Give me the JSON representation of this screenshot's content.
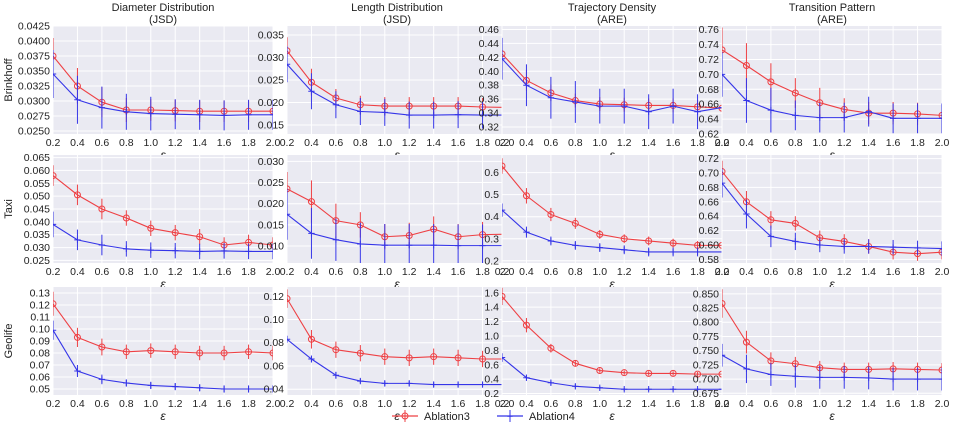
{
  "figure": {
    "col_titles": [
      [
        "Diameter Distribution",
        "(JSD)"
      ],
      [
        "Length Distribution",
        "(JSD)"
      ],
      [
        "Trajectory Density",
        "(ARE)"
      ],
      [
        "Transition Pattern",
        "(ARE)"
      ]
    ],
    "row_labels": [
      "Brinkhoff",
      "Taxi",
      "Geolife"
    ],
    "legend": [
      {
        "name": "Ablation3",
        "color": "#ee4044"
      },
      {
        "name": "Ablation4",
        "color": "#3535e8"
      }
    ]
  },
  "chart_data": [
    {
      "type": "line",
      "row": 0,
      "col": 0,
      "xlabel": "ε",
      "ylabel": "",
      "x": [
        0.2,
        0.4,
        0.6,
        0.8,
        1.0,
        1.2,
        1.4,
        1.6,
        1.8,
        2.0
      ],
      "ylim": [
        0.0245,
        0.0425
      ],
      "yticks": [
        0.025,
        0.0275,
        0.03,
        0.0325,
        0.035,
        0.0375,
        0.04,
        0.0425
      ],
      "ytick_labels": [
        "0.0250",
        "0.0275",
        "0.0300",
        "0.0325",
        "0.0350",
        "0.0375",
        "0.0400",
        "0.0425"
      ],
      "series": [
        {
          "name": "Ablation3",
          "values": [
            0.0375,
            0.0325,
            0.0298,
            0.0285,
            0.0285,
            0.0284,
            0.0283,
            0.0283,
            0.0283,
            0.0283
          ],
          "errors": [
            0.003,
            0.003,
            0.0025,
            0.002,
            0.0018,
            0.0018,
            0.0018,
            0.0018,
            0.0018,
            0.0018
          ]
        },
        {
          "name": "Ablation4",
          "values": [
            0.0345,
            0.0302,
            0.0289,
            0.0282,
            0.0279,
            0.0278,
            0.0277,
            0.0276,
            0.0277,
            0.0277
          ],
          "errors": [
            0.004,
            0.004,
            0.0035,
            0.003,
            0.0028,
            0.0025,
            0.0025,
            0.0025,
            0.0025,
            0.0025
          ]
        }
      ]
    },
    {
      "type": "line",
      "row": 0,
      "col": 1,
      "xlabel": "ε",
      "ylabel": "",
      "x": [
        0.2,
        0.4,
        0.6,
        0.8,
        1.0,
        1.2,
        1.4,
        1.6,
        1.8,
        2.0
      ],
      "ylim": [
        0.013,
        0.037
      ],
      "yticks": [
        0.015,
        0.02,
        0.025,
        0.03,
        0.035
      ],
      "ytick_labels": [
        "0.015",
        "0.020",
        "0.025",
        "0.030",
        "0.035"
      ],
      "series": [
        {
          "name": "Ablation3",
          "values": [
            0.0315,
            0.0245,
            0.021,
            0.0195,
            0.0192,
            0.0192,
            0.0192,
            0.0192,
            0.019,
            0.0189
          ],
          "errors": [
            0.003,
            0.003,
            0.002,
            0.002,
            0.002,
            0.002,
            0.002,
            0.002,
            0.002,
            0.002
          ]
        },
        {
          "name": "Ablation4",
          "values": [
            0.0285,
            0.0225,
            0.0195,
            0.018,
            0.0178,
            0.0172,
            0.0172,
            0.0173,
            0.0172,
            0.0172
          ],
          "errors": [
            0.004,
            0.004,
            0.003,
            0.003,
            0.003,
            0.003,
            0.003,
            0.003,
            0.003,
            0.003
          ]
        }
      ]
    },
    {
      "type": "line",
      "row": 0,
      "col": 2,
      "xlabel": "ε",
      "ylabel": "",
      "x": [
        0.2,
        0.4,
        0.6,
        0.8,
        1.0,
        1.2,
        1.4,
        1.6,
        1.8,
        2.0
      ],
      "ylim": [
        0.31,
        0.465
      ],
      "yticks": [
        0.32,
        0.34,
        0.36,
        0.38,
        0.4,
        0.42,
        0.44,
        0.46
      ],
      "ytick_labels": [
        "0.32",
        "0.34",
        "0.36",
        "0.38",
        "0.40",
        "0.42",
        "0.44",
        "0.46"
      ],
      "series": [
        {
          "name": "Ablation3",
          "values": [
            0.425,
            0.387,
            0.369,
            0.358,
            0.353,
            0.352,
            0.351,
            0.351,
            0.349,
            0.347
          ],
          "errors": [
            0.02,
            0.015,
            0.012,
            0.01,
            0.01,
            0.01,
            0.01,
            0.01,
            0.01,
            0.01
          ]
        },
        {
          "name": "Ablation4",
          "values": [
            0.418,
            0.38,
            0.362,
            0.356,
            0.35,
            0.35,
            0.342,
            0.35,
            0.342,
            0.348
          ],
          "errors": [
            0.03,
            0.03,
            0.03,
            0.03,
            0.025,
            0.025,
            0.025,
            0.025,
            0.025,
            0.025
          ]
        }
      ]
    },
    {
      "type": "line",
      "row": 0,
      "col": 3,
      "xlabel": "ε",
      "ylabel": "",
      "x": [
        0.2,
        0.4,
        0.6,
        0.8,
        1.0,
        1.2,
        1.4,
        1.6,
        1.8,
        2.0
      ],
      "ylim": [
        0.62,
        0.765
      ],
      "yticks": [
        0.62,
        0.64,
        0.66,
        0.68,
        0.7,
        0.72,
        0.74,
        0.76
      ],
      "ytick_labels": [
        "0.62",
        "0.64",
        "0.66",
        "0.68",
        "0.70",
        "0.72",
        "0.74",
        "0.76"
      ],
      "series": [
        {
          "name": "Ablation3",
          "values": [
            0.733,
            0.712,
            0.69,
            0.675,
            0.662,
            0.653,
            0.648,
            0.648,
            0.647,
            0.645
          ],
          "errors": [
            0.03,
            0.03,
            0.025,
            0.02,
            0.02,
            0.015,
            0.015,
            0.015,
            0.015,
            0.015
          ]
        },
        {
          "name": "Ablation4",
          "values": [
            0.7,
            0.665,
            0.652,
            0.645,
            0.642,
            0.642,
            0.65,
            0.641,
            0.641,
            0.641
          ],
          "errors": [
            0.03,
            0.03,
            0.03,
            0.02,
            0.02,
            0.02,
            0.02,
            0.02,
            0.02,
            0.02
          ]
        }
      ]
    },
    {
      "type": "line",
      "row": 1,
      "col": 0,
      "xlabel": "ε",
      "ylabel": "",
      "x": [
        0.2,
        0.4,
        0.6,
        0.8,
        1.0,
        1.2,
        1.4,
        1.6,
        1.8,
        2.0
      ],
      "ylim": [
        0.024,
        0.066
      ],
      "yticks": [
        0.025,
        0.03,
        0.035,
        0.04,
        0.045,
        0.05,
        0.055,
        0.06,
        0.065
      ],
      "ytick_labels": [
        "0.025",
        "0.030",
        "0.035",
        "0.040",
        "0.045",
        "0.050",
        "0.055",
        "0.060",
        "0.065"
      ],
      "series": [
        {
          "name": "Ablation3",
          "values": [
            0.058,
            0.0505,
            0.045,
            0.0415,
            0.0375,
            0.0358,
            0.0342,
            0.031,
            0.032,
            0.031
          ],
          "errors": [
            0.004,
            0.004,
            0.004,
            0.003,
            0.003,
            0.003,
            0.003,
            0.003,
            0.003,
            0.003
          ]
        },
        {
          "name": "Ablation4",
          "values": [
            0.039,
            0.033,
            0.031,
            0.0295,
            0.029,
            0.0288,
            0.0285,
            0.0287,
            0.0285,
            0.0285
          ],
          "errors": [
            0.005,
            0.004,
            0.004,
            0.003,
            0.003,
            0.003,
            0.003,
            0.003,
            0.003,
            0.003
          ]
        }
      ]
    },
    {
      "type": "line",
      "row": 1,
      "col": 1,
      "xlabel": "ε",
      "ylabel": "",
      "x": [
        0.2,
        0.4,
        0.6,
        0.8,
        1.0,
        1.2,
        1.4,
        1.6,
        1.8,
        2.0
      ],
      "ylim": [
        0.006,
        0.0315
      ],
      "yticks": [
        0.01,
        0.015,
        0.02,
        0.025,
        0.03
      ],
      "ytick_labels": [
        "0.010",
        "0.015",
        "0.020",
        "0.025",
        "0.030"
      ],
      "series": [
        {
          "name": "Ablation3",
          "values": [
            0.0235,
            0.0205,
            0.016,
            0.015,
            0.0122,
            0.0125,
            0.014,
            0.0122,
            0.0127,
            0.0128
          ],
          "errors": [
            0.004,
            0.005,
            0.004,
            0.003,
            0.003,
            0.003,
            0.003,
            0.003,
            0.003,
            0.003
          ]
        },
        {
          "name": "Ablation4",
          "values": [
            0.0175,
            0.013,
            0.0115,
            0.0105,
            0.0102,
            0.0102,
            0.0102,
            0.0101,
            0.0101,
            0.0101
          ],
          "errors": [
            0.006,
            0.006,
            0.005,
            0.005,
            0.005,
            0.005,
            0.005,
            0.005,
            0.005,
            0.005
          ]
        }
      ]
    },
    {
      "type": "line",
      "row": 1,
      "col": 2,
      "xlabel": "ε",
      "ylabel": "",
      "x": [
        0.2,
        0.4,
        0.6,
        0.8,
        1.0,
        1.2,
        1.4,
        1.6,
        1.8,
        2.0
      ],
      "ylim": [
        0.19,
        0.68
      ],
      "yticks": [
        0.2,
        0.3,
        0.4,
        0.5,
        0.6
      ],
      "ytick_labels": [
        "0.2",
        "0.3",
        "0.4",
        "0.5",
        "0.6"
      ],
      "series": [
        {
          "name": "Ablation3",
          "values": [
            0.63,
            0.495,
            0.41,
            0.37,
            0.32,
            0.3,
            0.29,
            0.28,
            0.27,
            0.27
          ],
          "errors": [
            0.035,
            0.035,
            0.03,
            0.025,
            0.02,
            0.02,
            0.02,
            0.02,
            0.02,
            0.02
          ]
        },
        {
          "name": "Ablation4",
          "values": [
            0.43,
            0.33,
            0.29,
            0.27,
            0.26,
            0.25,
            0.24,
            0.24,
            0.24,
            0.24
          ],
          "errors": [
            0.03,
            0.025,
            0.02,
            0.02,
            0.02,
            0.02,
            0.02,
            0.02,
            0.02,
            0.02
          ]
        }
      ]
    },
    {
      "type": "line",
      "row": 1,
      "col": 3,
      "xlabel": "ε",
      "ylabel": "",
      "x": [
        0.2,
        0.4,
        0.6,
        0.8,
        1.0,
        1.2,
        1.4,
        1.6,
        1.8,
        2.0
      ],
      "ylim": [
        0.575,
        0.725
      ],
      "yticks": [
        0.58,
        0.6,
        0.62,
        0.64,
        0.66,
        0.68,
        0.7,
        0.72
      ],
      "ytick_labels": [
        "0.58",
        "0.60",
        "0.62",
        "0.64",
        "0.66",
        "0.68",
        "0.70",
        "0.72"
      ],
      "series": [
        {
          "name": "Ablation3",
          "values": [
            0.702,
            0.66,
            0.635,
            0.63,
            0.61,
            0.605,
            0.598,
            0.59,
            0.588,
            0.59
          ],
          "errors": [
            0.015,
            0.015,
            0.012,
            0.01,
            0.01,
            0.01,
            0.01,
            0.01,
            0.01,
            0.01
          ]
        },
        {
          "name": "Ablation4",
          "values": [
            0.686,
            0.643,
            0.612,
            0.605,
            0.6,
            0.598,
            0.598,
            0.597,
            0.596,
            0.595
          ],
          "errors": [
            0.02,
            0.02,
            0.015,
            0.012,
            0.01,
            0.01,
            0.01,
            0.01,
            0.01,
            0.01
          ]
        }
      ]
    },
    {
      "type": "line",
      "row": 2,
      "col": 0,
      "xlabel": "ε",
      "ylabel": "",
      "x": [
        0.2,
        0.4,
        0.6,
        0.8,
        1.0,
        1.2,
        1.4,
        1.6,
        1.8,
        2.0
      ],
      "ylim": [
        0.045,
        0.135
      ],
      "yticks": [
        0.05,
        0.06,
        0.07,
        0.08,
        0.09,
        0.1,
        0.11,
        0.12,
        0.13
      ],
      "ytick_labels": [
        "0.05",
        "0.06",
        "0.07",
        "0.08",
        "0.09",
        "0.10",
        "0.11",
        "0.12",
        "0.13"
      ],
      "series": [
        {
          "name": "Ablation3",
          "values": [
            0.121,
            0.093,
            0.085,
            0.081,
            0.082,
            0.081,
            0.08,
            0.08,
            0.081,
            0.08
          ],
          "errors": [
            0.01,
            0.008,
            0.007,
            0.006,
            0.006,
            0.006,
            0.006,
            0.006,
            0.006,
            0.006
          ]
        },
        {
          "name": "Ablation4",
          "values": [
            0.099,
            0.065,
            0.058,
            0.055,
            0.053,
            0.052,
            0.051,
            0.05,
            0.05,
            0.05
          ],
          "errors": [
            0.008,
            0.005,
            0.004,
            0.003,
            0.003,
            0.003,
            0.003,
            0.003,
            0.003,
            0.003
          ]
        }
      ]
    },
    {
      "type": "line",
      "row": 2,
      "col": 1,
      "xlabel": "ε",
      "ylabel": "",
      "x": [
        0.2,
        0.4,
        0.6,
        0.8,
        1.0,
        1.2,
        1.4,
        1.6,
        1.8,
        2.0
      ],
      "ylim": [
        0.035,
        0.128
      ],
      "yticks": [
        0.04,
        0.06,
        0.08,
        0.1,
        0.12
      ],
      "ytick_labels": [
        "0.04",
        "0.06",
        "0.08",
        "0.10",
        "0.12"
      ],
      "series": [
        {
          "name": "Ablation3",
          "values": [
            0.118,
            0.083,
            0.074,
            0.071,
            0.068,
            0.067,
            0.068,
            0.067,
            0.066,
            0.066
          ],
          "errors": [
            0.008,
            0.008,
            0.007,
            0.007,
            0.007,
            0.007,
            0.007,
            0.007,
            0.007,
            0.007
          ]
        },
        {
          "name": "Ablation4",
          "values": [
            0.083,
            0.066,
            0.052,
            0.047,
            0.045,
            0.045,
            0.044,
            0.044,
            0.044,
            0.044
          ],
          "errors": [
            0.003,
            0.003,
            0.003,
            0.002,
            0.002,
            0.002,
            0.002,
            0.002,
            0.002,
            0.002
          ]
        }
      ]
    },
    {
      "type": "line",
      "row": 2,
      "col": 2,
      "xlabel": "ε",
      "ylabel": "",
      "x": [
        0.2,
        0.4,
        0.6,
        0.8,
        1.0,
        1.2,
        1.4,
        1.6,
        1.8,
        2.0
      ],
      "ylim": [
        0.18,
        1.68
      ],
      "yticks": [
        0.2,
        0.4,
        0.6,
        0.8,
        1.0,
        1.2,
        1.4,
        1.6
      ],
      "ytick_labels": [
        "0.2",
        "0.4",
        "0.6",
        "0.8",
        "1.0",
        "1.2",
        "1.4",
        "1.6"
      ],
      "series": [
        {
          "name": "Ablation3",
          "values": [
            1.55,
            1.15,
            0.83,
            0.62,
            0.52,
            0.49,
            0.48,
            0.48,
            0.47,
            0.47
          ],
          "errors": [
            0.12,
            0.1,
            0.06,
            0.04,
            0.03,
            0.03,
            0.03,
            0.03,
            0.03,
            0.03
          ]
        },
        {
          "name": "Ablation4",
          "values": [
            0.7,
            0.42,
            0.35,
            0.3,
            0.28,
            0.26,
            0.26,
            0.26,
            0.26,
            0.26
          ],
          "errors": [
            0.06,
            0.04,
            0.03,
            0.03,
            0.02,
            0.02,
            0.02,
            0.02,
            0.02,
            0.02
          ]
        }
      ]
    },
    {
      "type": "line",
      "row": 2,
      "col": 3,
      "xlabel": "ε",
      "ylabel": "",
      "x": [
        0.2,
        0.4,
        0.6,
        0.8,
        1.0,
        1.2,
        1.4,
        1.6,
        1.8,
        2.0
      ],
      "ylim": [
        0.672,
        0.862
      ],
      "yticks": [
        0.675,
        0.7,
        0.725,
        0.75,
        0.775,
        0.8,
        0.825,
        0.85
      ],
      "ytick_labels": [
        "0.675",
        "0.700",
        "0.725",
        "0.750",
        "0.775",
        "0.800",
        "0.825",
        "0.850"
      ],
      "series": [
        {
          "name": "Ablation3",
          "values": [
            0.833,
            0.765,
            0.732,
            0.727,
            0.72,
            0.717,
            0.717,
            0.718,
            0.717,
            0.716
          ],
          "errors": [
            0.025,
            0.02,
            0.015,
            0.012,
            0.012,
            0.012,
            0.012,
            0.012,
            0.012,
            0.012
          ]
        },
        {
          "name": "Ablation4",
          "values": [
            0.742,
            0.718,
            0.708,
            0.705,
            0.703,
            0.703,
            0.702,
            0.7,
            0.7,
            0.7
          ],
          "errors": [
            0.02,
            0.025,
            0.02,
            0.02,
            0.02,
            0.02,
            0.02,
            0.02,
            0.02,
            0.02
          ]
        }
      ]
    }
  ]
}
